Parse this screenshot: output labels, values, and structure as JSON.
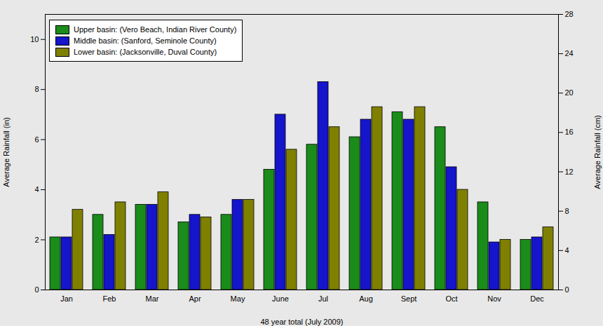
{
  "chart_data": {
    "type": "bar",
    "xlabel": "48 year total (July 2009)",
    "ylabel": "Average Rainfall (in)",
    "y2label": "Average Rainfall (cm)",
    "categories": [
      "Jan",
      "Feb",
      "Mar",
      "Apr",
      "May",
      "June",
      "Jul",
      "Aug",
      "Sept",
      "Oct",
      "Nov",
      "Dec"
    ],
    "series": [
      {
        "name": "Upper basin: (Vero Beach, Indian River County)",
        "color": "#1a8c1a",
        "values": [
          2.1,
          3.0,
          3.4,
          2.7,
          3.0,
          4.8,
          5.8,
          6.1,
          7.1,
          6.5,
          3.5,
          2.0
        ]
      },
      {
        "name": "Middle basin: (Sanford, Seminole County)",
        "color": "#1515cc",
        "values": [
          2.1,
          2.2,
          3.4,
          3.0,
          3.6,
          7.0,
          8.3,
          6.8,
          6.8,
          4.9,
          1.9,
          2.1
        ]
      },
      {
        "name": "Lower basin: (Jacksonville, Duval County)",
        "color": "#808000",
        "values": [
          3.2,
          3.5,
          3.9,
          2.9,
          3.6,
          5.6,
          6.5,
          7.3,
          7.3,
          4.0,
          2.0,
          2.5
        ]
      }
    ],
    "ylim": [
      0,
      11
    ],
    "yticks": [
      0,
      2,
      4,
      6,
      8,
      10
    ],
    "y2lim": [
      0,
      28
    ],
    "y2ticks": [
      0,
      4,
      8,
      12,
      16,
      20,
      24,
      28
    ],
    "legend": "upper left",
    "grid": false
  }
}
